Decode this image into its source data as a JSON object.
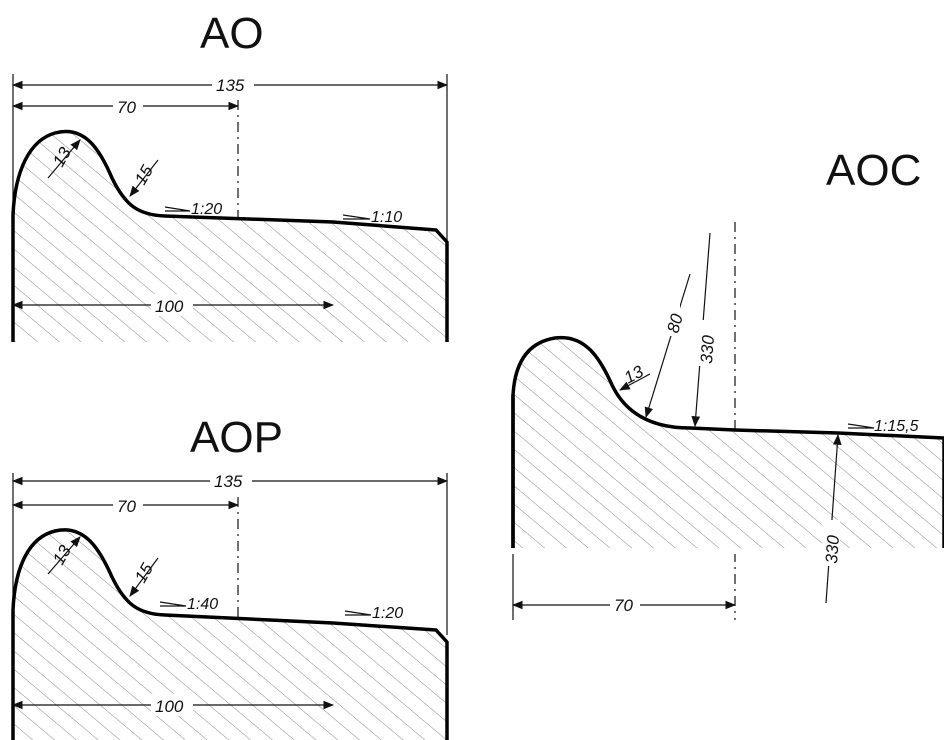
{
  "profiles": {
    "ao": {
      "title": "AO",
      "width_dim": "135",
      "half_dim": "70",
      "tread_dim": "100",
      "flange_radius": "13",
      "throat_radius": "15",
      "slope_inner": "1:20",
      "slope_outer": "1:10"
    },
    "aop": {
      "title": "AOP",
      "width_dim": "135",
      "half_dim": "70",
      "tread_dim": "100",
      "flange_radius": "13",
      "throat_radius": "15",
      "slope_inner": "1:40",
      "slope_outer": "1:20"
    },
    "aoc": {
      "title": "AOC",
      "half_dim": "70",
      "flange_radius": "13",
      "throat_radius": "80",
      "tread_radius": "330",
      "tread_radius_lower": "330",
      "slope": "1:15,5"
    }
  }
}
